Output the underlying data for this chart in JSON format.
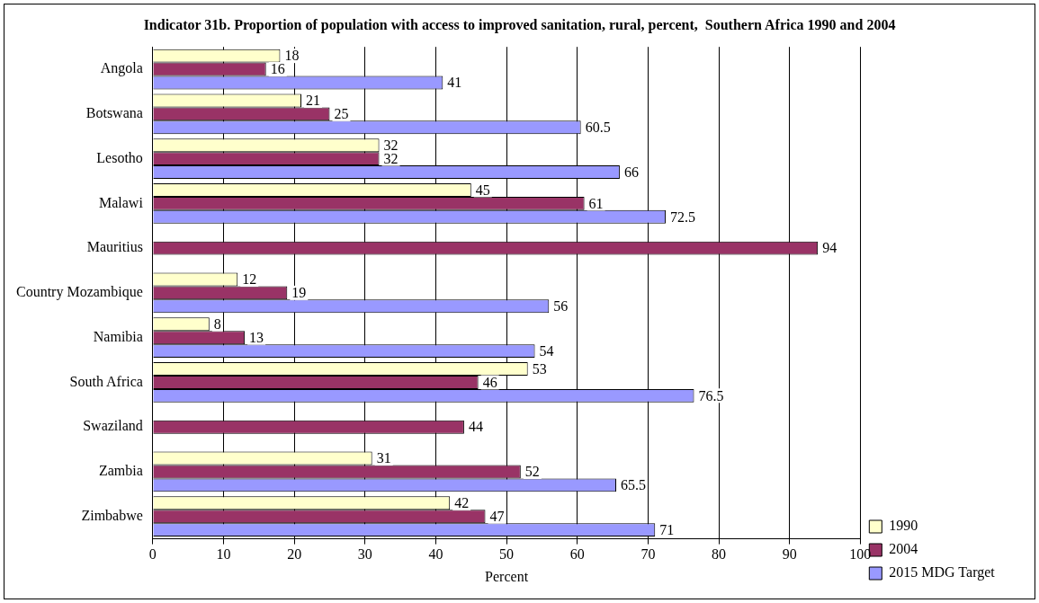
{
  "chart_data": {
    "type": "bar",
    "orientation": "horizontal",
    "title": "Indicator 31b. Proportion of population with access to improved sanitation, rural, percent,  Southern Africa 1990 and 2004",
    "xlabel": "Percent",
    "categories": [
      "Angola",
      "Botswana",
      "Lesotho",
      "Malawi",
      "Mauritius",
      "Country Mozambique",
      "Namibia",
      "South Africa",
      "Swaziland",
      "Zambia",
      "Zimbabwe"
    ],
    "series": [
      {
        "name": "1990",
        "color": "#ffffcc",
        "values": [
          18,
          21,
          32,
          45,
          null,
          12,
          8,
          53,
          null,
          31,
          42
        ]
      },
      {
        "name": "2004",
        "color": "#993366",
        "values": [
          16,
          25,
          32,
          61,
          94,
          19,
          13,
          46,
          44,
          52,
          47
        ]
      },
      {
        "name": "2015 MDG Target",
        "color": "#9999ff",
        "values": [
          41,
          60.5,
          66,
          72.5,
          null,
          56,
          54,
          76.5,
          null,
          65.5,
          71
        ]
      }
    ],
    "xlim": [
      0,
      100
    ],
    "xticks": [
      0,
      10,
      20,
      30,
      40,
      50,
      60,
      70,
      80,
      90,
      100
    ],
    "grid": "x",
    "legend": "bottom right",
    "data_labels": true
  }
}
